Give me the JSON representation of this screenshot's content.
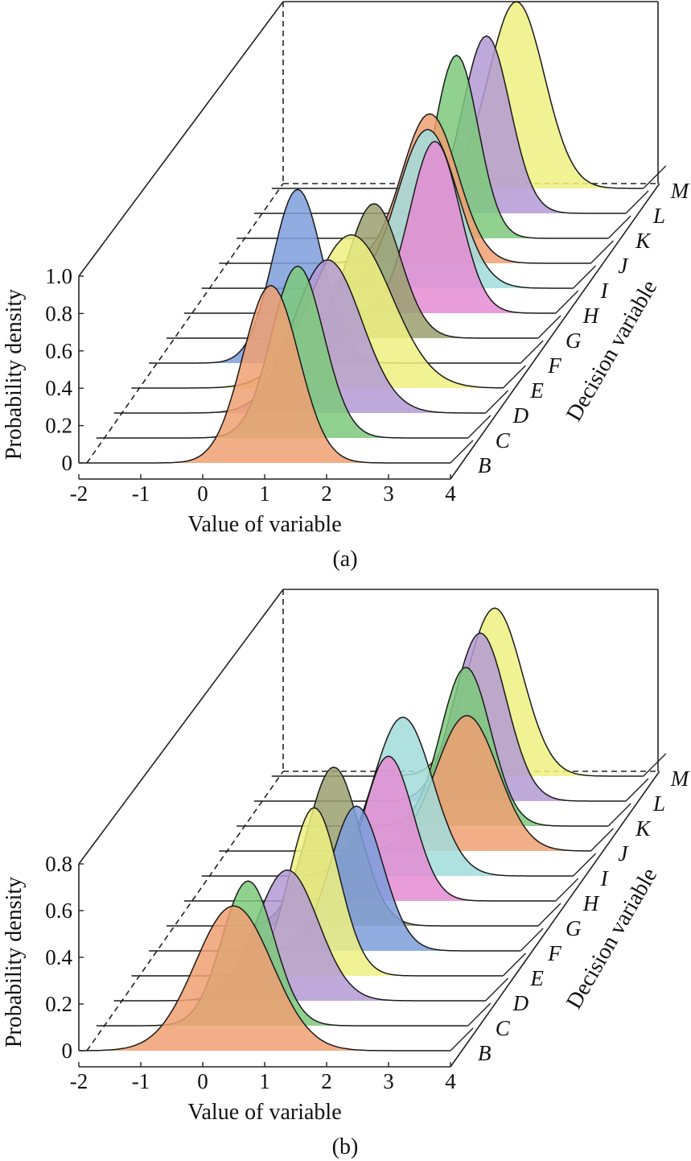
{
  "chart_data": [
    {
      "type": "ridgeline",
      "panel_label": "(a)",
      "xlabel": "Value of variable",
      "ylabel": "Probability density",
      "zlabel": "Decision variable",
      "x_ticks": [
        "-2",
        "-1",
        "0",
        "1",
        "2",
        "3",
        "4"
      ],
      "y_ticks": [
        "0",
        "0.2",
        "0.4",
        "0.6",
        "0.8",
        "1.0"
      ],
      "xlim": [
        -2,
        4
      ],
      "ylim": [
        0,
        1.0
      ],
      "categories": [
        "B",
        "C",
        "D",
        "E",
        "F",
        "G",
        "H",
        "I",
        "J",
        "K",
        "L",
        "M"
      ],
      "series": [
        {
          "name": "B",
          "peak": 0.95,
          "mean": 1.1,
          "sd": 0.45,
          "color": "#f0a072"
        },
        {
          "name": "C",
          "peak": 0.92,
          "mean": 1.25,
          "sd": 0.42,
          "color": "#7cc97c"
        },
        {
          "name": "D",
          "peak": 0.82,
          "mean": 1.45,
          "sd": 0.55,
          "color": "#b49ad4"
        },
        {
          "name": "E",
          "peak": 0.82,
          "mean": 1.55,
          "sd": 0.65,
          "color": "#eef080"
        },
        {
          "name": "F",
          "peak": 0.93,
          "mean": 0.4,
          "sd": 0.4,
          "color": "#7c9edc"
        },
        {
          "name": "G",
          "peak": 0.72,
          "mean": 1.35,
          "sd": 0.42,
          "color": "#9aa070"
        },
        {
          "name": "H",
          "peak": 0.92,
          "mean": 2.05,
          "sd": 0.4,
          "color": "#e48cd4"
        },
        {
          "name": "I",
          "peak": 0.85,
          "mean": 1.65,
          "sd": 0.48,
          "color": "#a2dcdc"
        },
        {
          "name": "J",
          "peak": 0.8,
          "mean": 1.4,
          "sd": 0.45,
          "color": "#f0a072"
        },
        {
          "name": "K",
          "peak": 0.98,
          "mean": 1.55,
          "sd": 0.35,
          "color": "#7cc97c"
        },
        {
          "name": "L",
          "peak": 0.95,
          "mean": 1.75,
          "sd": 0.38,
          "color": "#b49ad4"
        },
        {
          "name": "M",
          "peak": 1.0,
          "mean": 1.95,
          "sd": 0.45,
          "color": "#eef080"
        }
      ]
    },
    {
      "type": "ridgeline",
      "panel_label": "(b)",
      "xlabel": "Value of variable",
      "ylabel": "Probability density",
      "zlabel": "Decision variable",
      "x_ticks": [
        "-2",
        "-1",
        "0",
        "1",
        "2",
        "3",
        "4"
      ],
      "y_ticks": [
        "0",
        "0.2",
        "0.4",
        "0.6",
        "0.8"
      ],
      "xlim": [
        -2,
        4
      ],
      "ylim": [
        0,
        0.8
      ],
      "categories": [
        "B",
        "C",
        "D",
        "E",
        "F",
        "G",
        "H",
        "I",
        "J",
        "K",
        "L",
        "M"
      ],
      "series": [
        {
          "name": "B",
          "peak": 0.62,
          "mean": 0.5,
          "sd": 0.62,
          "color": "#f0a072"
        },
        {
          "name": "C",
          "peak": 0.62,
          "mean": 0.45,
          "sd": 0.42,
          "color": "#7cc97c"
        },
        {
          "name": "D",
          "peak": 0.56,
          "mean": 0.8,
          "sd": 0.5,
          "color": "#b49ad4"
        },
        {
          "name": "E",
          "peak": 0.72,
          "mean": 0.95,
          "sd": 0.4,
          "color": "#eef080"
        },
        {
          "name": "F",
          "peak": 0.62,
          "mean": 1.35,
          "sd": 0.42,
          "color": "#7c9edc"
        },
        {
          "name": "G",
          "peak": 0.68,
          "mean": 0.7,
          "sd": 0.42,
          "color": "#9aa070"
        },
        {
          "name": "H",
          "peak": 0.62,
          "mean": 1.3,
          "sd": 0.4,
          "color": "#e48cd4"
        },
        {
          "name": "I",
          "peak": 0.68,
          "mean": 1.25,
          "sd": 0.48,
          "color": "#a2dcdc"
        },
        {
          "name": "J",
          "peak": 0.58,
          "mean": 2.0,
          "sd": 0.5,
          "color": "#f0a072"
        },
        {
          "name": "K",
          "peak": 0.68,
          "mean": 1.7,
          "sd": 0.4,
          "color": "#7cc97c"
        },
        {
          "name": "L",
          "peak": 0.72,
          "mean": 1.65,
          "sd": 0.42,
          "color": "#b49ad4"
        },
        {
          "name": "M",
          "peak": 0.72,
          "mean": 1.6,
          "sd": 0.45,
          "color": "#eef080"
        }
      ]
    }
  ]
}
